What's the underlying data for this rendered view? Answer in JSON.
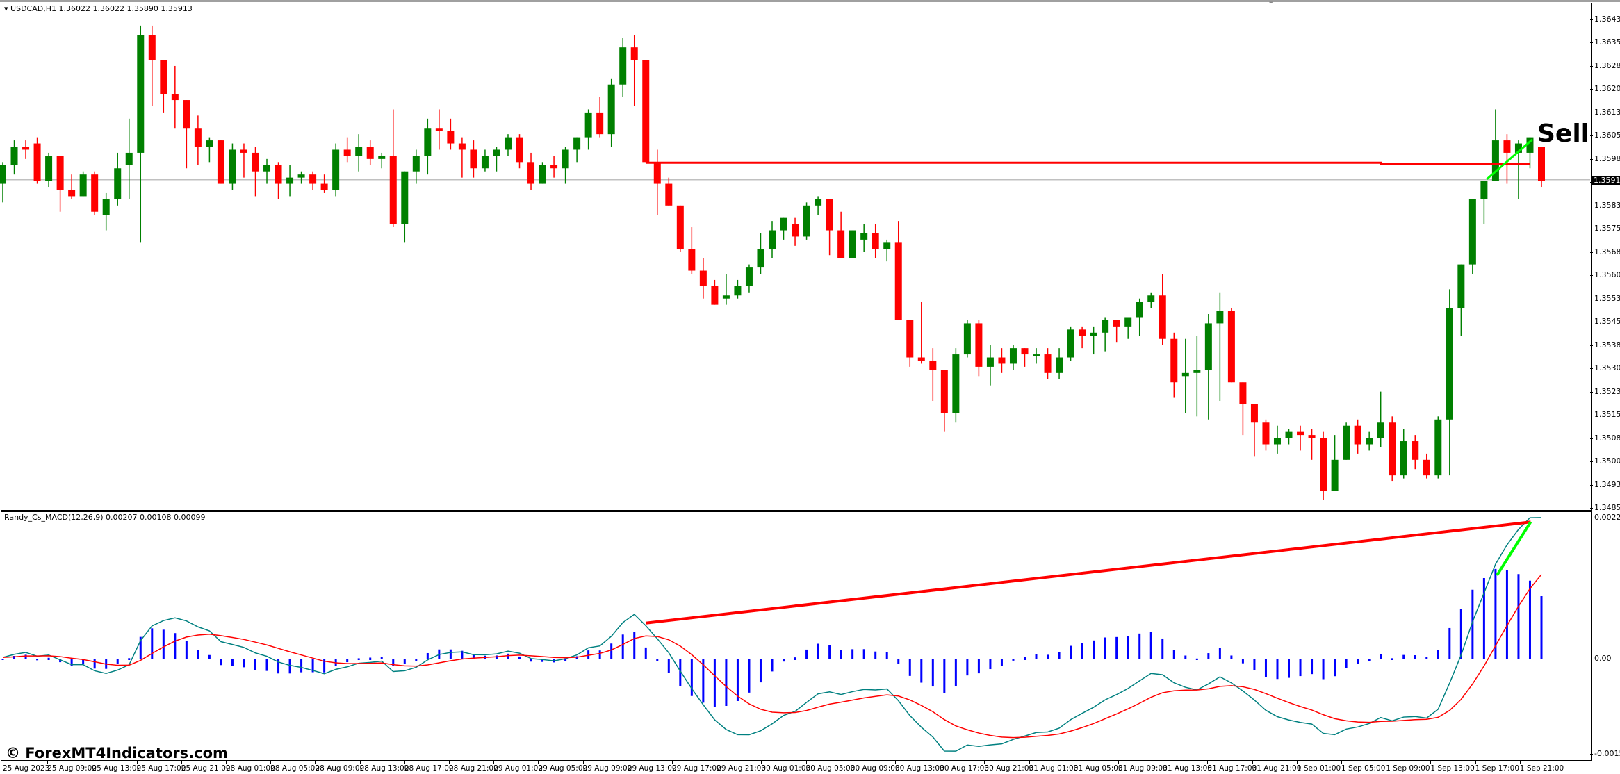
{
  "chart_data": [
    {
      "type": "candlestick",
      "title": "USDCAD,H1",
      "ohlc_header": "1.36022 1.36022 1.35890 1.35913",
      "symbol": "USDCAD",
      "timeframe": "H1",
      "ylim": [
        1.34855,
        1.3643
      ],
      "y_ticks": [
        "1.36430",
        "1.36355",
        "1.36280",
        "1.36205",
        "1.36130",
        "1.36055",
        "1.35980",
        "1.35905",
        "1.35830",
        "1.35755",
        "1.35680",
        "1.35605",
        "1.35530",
        "1.35455",
        "1.35380",
        "1.35305",
        "1.35230",
        "1.35155",
        "1.35080",
        "1.35005",
        "1.34930",
        "1.34855"
      ],
      "current_price": "1.35913",
      "annotations": [
        {
          "type": "text",
          "label": "Sell"
        },
        {
          "type": "horizontal_line",
          "color": "#ff0000",
          "price": 1.3597,
          "desc": "resistance line from 29 Aug 17:00 to 1 Sep 21:00"
        },
        {
          "type": "trend_line",
          "color": "#00ff00",
          "desc": "short green rising line on last bars"
        }
      ],
      "candle_pixels_note": "each candle: [open,high,low,close] as prices",
      "candles": [
        [
          1.359,
          1.3597,
          1.3584,
          1.3596
        ],
        [
          1.3596,
          1.3604,
          1.3593,
          1.3602
        ],
        [
          1.3602,
          1.3604,
          1.3598,
          1.3601
        ],
        [
          1.3603,
          1.3605,
          1.359,
          1.3591
        ],
        [
          1.3591,
          1.36,
          1.3589,
          1.3599
        ],
        [
          1.3599,
          1.3597,
          1.3581,
          1.3588
        ],
        [
          1.3588,
          1.3593,
          1.3585,
          1.3586
        ],
        [
          1.3586,
          1.3594,
          1.3586,
          1.3593
        ],
        [
          1.3593,
          1.3594,
          1.358,
          1.3581
        ],
        [
          1.358,
          1.3587,
          1.3575,
          1.3585
        ],
        [
          1.3585,
          1.36,
          1.3583,
          1.3595
        ],
        [
          1.3596,
          1.3611,
          1.3585,
          1.36
        ],
        [
          1.36,
          1.3641,
          1.3571,
          1.3638
        ],
        [
          1.3638,
          1.3641,
          1.3615,
          1.363
        ],
        [
          1.363,
          1.363,
          1.3613,
          1.3619
        ],
        [
          1.3619,
          1.3628,
          1.3608,
          1.3617
        ],
        [
          1.3617,
          1.3615,
          1.3595,
          1.3608
        ],
        [
          1.3608,
          1.3612,
          1.3596,
          1.3602
        ],
        [
          1.3602,
          1.3605,
          1.3597,
          1.3604
        ],
        [
          1.3604,
          1.3603,
          1.359,
          1.359
        ],
        [
          1.359,
          1.3603,
          1.3588,
          1.3601
        ],
        [
          1.3601,
          1.3603,
          1.3592,
          1.36
        ],
        [
          1.36,
          1.3602,
          1.3586,
          1.3594
        ],
        [
          1.3594,
          1.3598,
          1.359,
          1.3596
        ],
        [
          1.3596,
          1.3597,
          1.3585,
          1.359
        ],
        [
          1.359,
          1.3596,
          1.3586,
          1.3592
        ],
        [
          1.3592,
          1.3594,
          1.359,
          1.3593
        ],
        [
          1.3593,
          1.3594,
          1.3588,
          1.359
        ],
        [
          1.359,
          1.3593,
          1.3587,
          1.3588
        ],
        [
          1.3588,
          1.3603,
          1.3586,
          1.3601
        ],
        [
          1.3601,
          1.3605,
          1.3597,
          1.3599
        ],
        [
          1.3599,
          1.3606,
          1.3594,
          1.3602
        ],
        [
          1.3602,
          1.3604,
          1.3596,
          1.3598
        ],
        [
          1.3598,
          1.36,
          1.3595,
          1.3599
        ],
        [
          1.3599,
          1.3614,
          1.3576,
          1.3577
        ],
        [
          1.3577,
          1.359,
          1.3571,
          1.3594
        ],
        [
          1.3594,
          1.3601,
          1.359,
          1.3599
        ],
        [
          1.3599,
          1.3611,
          1.3593,
          1.3608
        ],
        [
          1.3608,
          1.3614,
          1.3601,
          1.3607
        ],
        [
          1.3607,
          1.3611,
          1.3601,
          1.3603
        ],
        [
          1.3603,
          1.3605,
          1.3592,
          1.3601
        ],
        [
          1.3601,
          1.3604,
          1.3592,
          1.3595
        ],
        [
          1.3595,
          1.3601,
          1.3594,
          1.3599
        ],
        [
          1.3599,
          1.3602,
          1.3594,
          1.3601
        ],
        [
          1.3601,
          1.3606,
          1.3599,
          1.3605
        ],
        [
          1.3605,
          1.3606,
          1.3595,
          1.3597
        ],
        [
          1.3597,
          1.36,
          1.3588,
          1.359
        ],
        [
          1.359,
          1.3597,
          1.359,
          1.3596
        ],
        [
          1.3596,
          1.3599,
          1.3592,
          1.3595
        ],
        [
          1.3595,
          1.3602,
          1.359,
          1.3601
        ],
        [
          1.3601,
          1.3604,
          1.3597,
          1.3605
        ],
        [
          1.3605,
          1.3614,
          1.3601,
          1.3613
        ],
        [
          1.3613,
          1.3618,
          1.3605,
          1.3606
        ],
        [
          1.3606,
          1.3624,
          1.3602,
          1.3622
        ],
        [
          1.3622,
          1.3637,
          1.3618,
          1.3634
        ],
        [
          1.3634,
          1.3638,
          1.3615,
          1.363
        ],
        [
          1.363,
          1.363,
          1.3597,
          1.3597
        ],
        [
          1.3597,
          1.3601,
          1.358,
          1.359
        ],
        [
          1.359,
          1.3592,
          1.3583,
          1.3583
        ],
        [
          1.3583,
          1.3583,
          1.3568,
          1.3569
        ],
        [
          1.3569,
          1.3576,
          1.3561,
          1.3562
        ],
        [
          1.3562,
          1.3566,
          1.3553,
          1.3557
        ],
        [
          1.3557,
          1.3559,
          1.3551,
          1.3551
        ],
        [
          1.3553,
          1.3561,
          1.3551,
          1.3554
        ],
        [
          1.3554,
          1.3559,
          1.3553,
          1.3557
        ],
        [
          1.3557,
          1.3564,
          1.3555,
          1.3563
        ],
        [
          1.3563,
          1.3574,
          1.3561,
          1.3569
        ],
        [
          1.3569,
          1.3578,
          1.3566,
          1.3575
        ],
        [
          1.3575,
          1.3578,
          1.3572,
          1.3579
        ],
        [
          1.3577,
          1.3579,
          1.357,
          1.3573
        ],
        [
          1.3573,
          1.3584,
          1.3572,
          1.3583
        ],
        [
          1.3583,
          1.3586,
          1.358,
          1.3585
        ],
        [
          1.3585,
          1.3585,
          1.3567,
          1.3575
        ],
        [
          1.3575,
          1.3581,
          1.3566,
          1.3566
        ],
        [
          1.3566,
          1.3574,
          1.3568,
          1.3575
        ],
        [
          1.3572,
          1.3577,
          1.3568,
          1.3574
        ],
        [
          1.3574,
          1.3577,
          1.3566,
          1.3569
        ],
        [
          1.3569,
          1.3572,
          1.3565,
          1.3571
        ],
        [
          1.3571,
          1.3578,
          1.3546,
          1.3546
        ],
        [
          1.3546,
          1.3546,
          1.3531,
          1.3534
        ],
        [
          1.3534,
          1.3552,
          1.3532,
          1.3533
        ],
        [
          1.3533,
          1.3537,
          1.352,
          1.353
        ],
        [
          1.353,
          1.3518,
          1.351,
          1.3516
        ],
        [
          1.3516,
          1.3537,
          1.3513,
          1.3535
        ],
        [
          1.3535,
          1.3546,
          1.3534,
          1.3545
        ],
        [
          1.3545,
          1.3546,
          1.3528,
          1.3531
        ],
        [
          1.3531,
          1.3538,
          1.3525,
          1.3534
        ],
        [
          1.3534,
          1.3537,
          1.3529,
          1.3532
        ],
        [
          1.3532,
          1.3538,
          1.353,
          1.3537
        ],
        [
          1.3537,
          1.3537,
          1.3531,
          1.3535
        ],
        [
          1.3535,
          1.3537,
          1.3532,
          1.3535
        ],
        [
          1.3535,
          1.3537,
          1.3527,
          1.3529
        ],
        [
          1.3529,
          1.3537,
          1.3527,
          1.3534
        ],
        [
          1.3534,
          1.3544,
          1.3533,
          1.3543
        ],
        [
          1.3543,
          1.3544,
          1.3537,
          1.3541
        ],
        [
          1.3541,
          1.3544,
          1.3535,
          1.3542
        ],
        [
          1.3542,
          1.3547,
          1.3536,
          1.3546
        ],
        [
          1.3546,
          1.3545,
          1.3539,
          1.3544
        ],
        [
          1.3544,
          1.3546,
          1.354,
          1.3547
        ],
        [
          1.3547,
          1.3553,
          1.3541,
          1.3552
        ],
        [
          1.3552,
          1.3555,
          1.355,
          1.3554
        ],
        [
          1.3554,
          1.3561,
          1.3538,
          1.354
        ],
        [
          1.354,
          1.3542,
          1.3521,
          1.3526
        ],
        [
          1.3528,
          1.354,
          1.3516,
          1.3529
        ],
        [
          1.3529,
          1.3541,
          1.3515,
          1.353
        ],
        [
          1.353,
          1.3548,
          1.3514,
          1.3545
        ],
        [
          1.3545,
          1.3555,
          1.352,
          1.3549
        ],
        [
          1.3549,
          1.355,
          1.3526,
          1.3526
        ],
        [
          1.3526,
          1.3526,
          1.3509,
          1.3519
        ],
        [
          1.3519,
          1.3516,
          1.3502,
          1.3513
        ],
        [
          1.3513,
          1.3514,
          1.3504,
          1.3506
        ],
        [
          1.3506,
          1.3512,
          1.3503,
          1.3508
        ],
        [
          1.3508,
          1.3511,
          1.3506,
          1.351
        ],
        [
          1.351,
          1.3512,
          1.3504,
          1.3509
        ],
        [
          1.3509,
          1.3511,
          1.3501,
          1.3508
        ],
        [
          1.3508,
          1.351,
          1.3488,
          1.3491
        ],
        [
          1.3491,
          1.3509,
          1.3492,
          1.3501
        ],
        [
          1.3501,
          1.3513,
          1.3501,
          1.3512
        ],
        [
          1.3512,
          1.3514,
          1.3503,
          1.3506
        ],
        [
          1.3506,
          1.351,
          1.3504,
          1.3508
        ],
        [
          1.3508,
          1.3523,
          1.3505,
          1.3513
        ],
        [
          1.3513,
          1.3515,
          1.3494,
          1.3496
        ],
        [
          1.3496,
          1.3511,
          1.3495,
          1.3507
        ],
        [
          1.3507,
          1.3509,
          1.3498,
          1.3501
        ],
        [
          1.3501,
          1.3503,
          1.3495,
          1.3496
        ],
        [
          1.3496,
          1.3515,
          1.3495,
          1.3514
        ],
        [
          1.3514,
          1.3556,
          1.3496,
          1.355
        ],
        [
          1.355,
          1.3564,
          1.3541,
          1.3564
        ],
        [
          1.3564,
          1.3582,
          1.3561,
          1.3585
        ],
        [
          1.3585,
          1.3588,
          1.3577,
          1.3591
        ],
        [
          1.3591,
          1.3614,
          1.3597,
          1.3604
        ],
        [
          1.3604,
          1.3606,
          1.359,
          1.36
        ],
        [
          1.36,
          1.3604,
          1.3585,
          1.3603
        ],
        [
          1.36,
          1.3603,
          1.3595,
          1.3605
        ],
        [
          1.3602,
          1.3602,
          1.3589,
          1.3591
        ]
      ]
    },
    {
      "type": "macd",
      "title": "Randy_Cs_MACD(12,26,9)",
      "values_header": "0.00207 0.00108 0.00099",
      "ylim": [
        -0.00159,
        0.00224
      ],
      "y_ticks": [
        "0.00224",
        "0.00",
        "-0.00159"
      ],
      "series": [
        {
          "name": "MACD main",
          "color": "#008080"
        },
        {
          "name": "Signal",
          "color": "#ff0000"
        },
        {
          "name": "Histogram",
          "color": "#0000ff"
        }
      ],
      "annotations": [
        {
          "type": "trend_line",
          "color": "#ff0000",
          "desc": "rising line from 29 Aug 17:00 to 1 Sep 21:00 (divergence)"
        },
        {
          "type": "trend_line",
          "color": "#00ff00",
          "desc": "steep rising line on last bars"
        }
      ]
    }
  ],
  "x_ticks": [
    "25 Aug 2023",
    "25 Aug 09:00",
    "25 Aug 13:00",
    "25 Aug 17:00",
    "25 Aug 21:00",
    "28 Aug 01:00",
    "28 Aug 05:00",
    "28 Aug 09:00",
    "28 Aug 13:00",
    "28 Aug 17:00",
    "28 Aug 21:00",
    "29 Aug 01:00",
    "29 Aug 05:00",
    "29 Aug 09:00",
    "29 Aug 13:00",
    "29 Aug 17:00",
    "29 Aug 21:00",
    "30 Aug 01:00",
    "30 Aug 05:00",
    "30 Aug 09:00",
    "30 Aug 13:00",
    "30 Aug 17:00",
    "30 Aug 21:00",
    "31 Aug 01:00",
    "31 Aug 05:00",
    "31 Aug 09:00",
    "31 Aug 13:00",
    "31 Aug 17:00",
    "31 Aug 21:00",
    "1 Sep 01:00",
    "1 Sep 05:00",
    "1 Sep 09:00",
    "1 Sep 13:00",
    "1 Sep 17:00",
    "1 Sep 21:00"
  ],
  "price_panel": {
    "header": "USDCAD,H1  1.36022 1.36022 1.35890 1.35913",
    "current_price": "1.35913",
    "sell_label": "Sell"
  },
  "macd_panel": {
    "header": "Randy_Cs_MACD(12,26,9) 0.00207 0.00108 0.00099"
  },
  "watermark": "© ForexMT4Indicators.com",
  "colors": {
    "bull": "#008000",
    "bear": "#ff0000",
    "macd": "#008080",
    "signal": "#ff0000",
    "histogram": "#0000ff",
    "trend_green": "#00ff00"
  }
}
